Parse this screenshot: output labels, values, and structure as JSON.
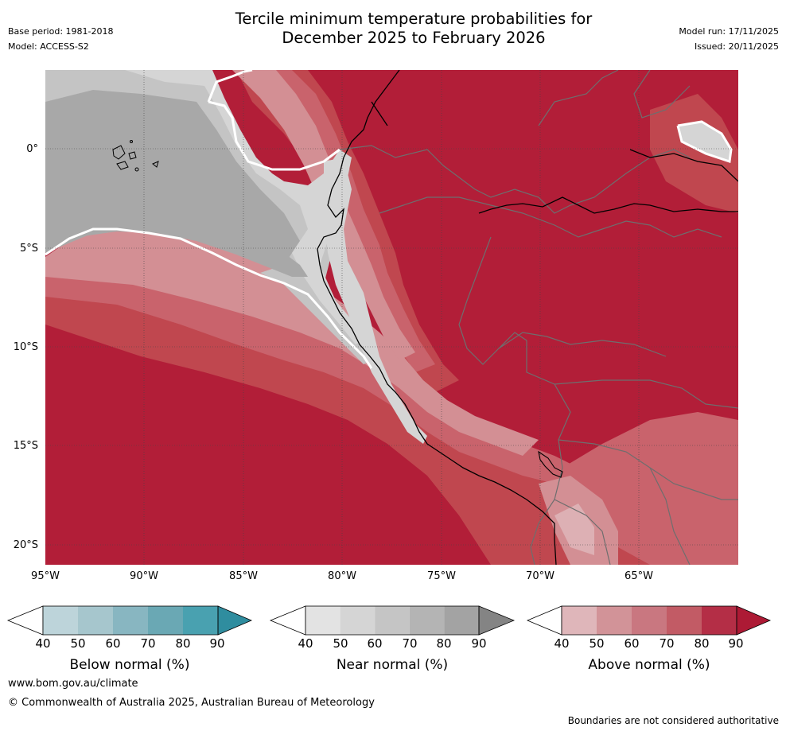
{
  "header": {
    "title_line1": "Tercile minimum temperature probabilities for",
    "title_line2": "December 2025 to February 2026",
    "base_period": "Base period: 1981-2018",
    "model": "Model: ACCESS-S2",
    "model_run": "Model run: 17/11/2025",
    "issued": "Issued: 20/11/2025"
  },
  "map": {
    "region": "Western South America and eastern Pacific",
    "y_labels": [
      "0°",
      "5°S",
      "10°S",
      "15°S",
      "20°S"
    ],
    "x_labels": [
      "95°W",
      "90°W",
      "85°W",
      "80°W",
      "75°W",
      "70°W",
      "65°W"
    ],
    "colors": {
      "above_90": "#b21e38",
      "above_80": "#c0474f",
      "above_70": "#c9636c",
      "above_60": "#d38f94",
      "above_50": "#ddb0b4",
      "near_50": "#d5d5d5",
      "near_60": "#c4c4c4",
      "near_70": "#a8a8a8",
      "near_80": "#969696",
      "border": "#6e6e6e",
      "coast": "#000000"
    }
  },
  "colorbars": [
    {
      "name": "below",
      "label": "Below normal (%)",
      "ticks": [
        "40",
        "50",
        "60",
        "70",
        "80",
        "90"
      ],
      "colors": [
        "#bdd4da",
        "#a6c6cd",
        "#88b6c1",
        "#6aa8b4",
        "#49a1b0",
        "#2f8d9f"
      ]
    },
    {
      "name": "near",
      "label": "Near normal (%)",
      "ticks": [
        "40",
        "50",
        "60",
        "70",
        "80",
        "90"
      ],
      "colors": [
        "#e3e3e3",
        "#d5d5d5",
        "#c5c5c5",
        "#b4b4b4",
        "#a3a3a3",
        "#848484"
      ]
    },
    {
      "name": "above",
      "label": "Above normal (%)",
      "ticks": [
        "40",
        "50",
        "60",
        "70",
        "80",
        "90"
      ],
      "colors": [
        "#dfb6ba",
        "#d29398",
        "#c97780",
        "#c25b65",
        "#b42e46",
        "#ad1a35"
      ]
    }
  ],
  "footer": {
    "website": "www.bom.gov.au/climate",
    "copyright": "© Commonwealth of Australia 2025, Australian Bureau of Meteorology",
    "disclaimer": "Boundaries are not considered authoritative"
  }
}
